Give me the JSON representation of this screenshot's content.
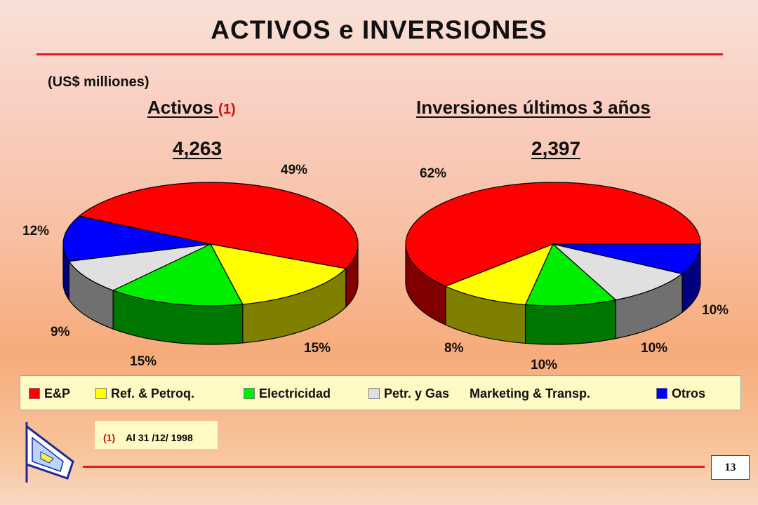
{
  "slide": {
    "title": "ACTIVOS e INVERSIONES",
    "units": "(US$ milliones)",
    "footnote_marker": "(1)",
    "footnote_text": "Al 31 /12/ 1998",
    "page_number": "13"
  },
  "categories": [
    "E&P",
    "Ref. & Petroq.",
    "Electricidad",
    "Petr. y Gas Marketing & Transp.",
    "Otros"
  ],
  "colors": {
    "E&P": "#ff0000",
    "Ref. & Petroq.": "#ffff00",
    "Electricidad": "#00ee00",
    "Petr. y Gas Marketing & Transp.": "#e0e0e0",
    "Otros": "#0000ff",
    "accent_rule": "#e8191c"
  },
  "legend": {
    "items": [
      "E&P",
      "Ref. & Petroq.",
      "Electricidad",
      "Petr. y Gas",
      "Marketing & Transp.",
      "Otros"
    ]
  },
  "chart_data": [
    {
      "type": "pie",
      "title": "Activos",
      "title_ref": "(1)",
      "total": "4,263",
      "categories": [
        "E&P",
        "Ref. & Petroq.",
        "Electricidad",
        "Petr. y Gas Marketing & Transp.",
        "Otros"
      ],
      "values": [
        49,
        15,
        15,
        9,
        12
      ],
      "labels": [
        "49%",
        "15%",
        "15%",
        "9%",
        "12%"
      ]
    },
    {
      "type": "pie",
      "title": "Inversiones últimos 3 años",
      "title_ref": "",
      "total": "2,397",
      "categories": [
        "E&P",
        "Ref. & Petroq.",
        "Electricidad",
        "Petr. y Gas Marketing & Transp.",
        "Otros"
      ],
      "values": [
        62,
        10,
        10,
        10,
        8
      ],
      "labels": [
        "62%",
        "10%",
        "10%",
        "10%",
        "8%"
      ]
    }
  ]
}
